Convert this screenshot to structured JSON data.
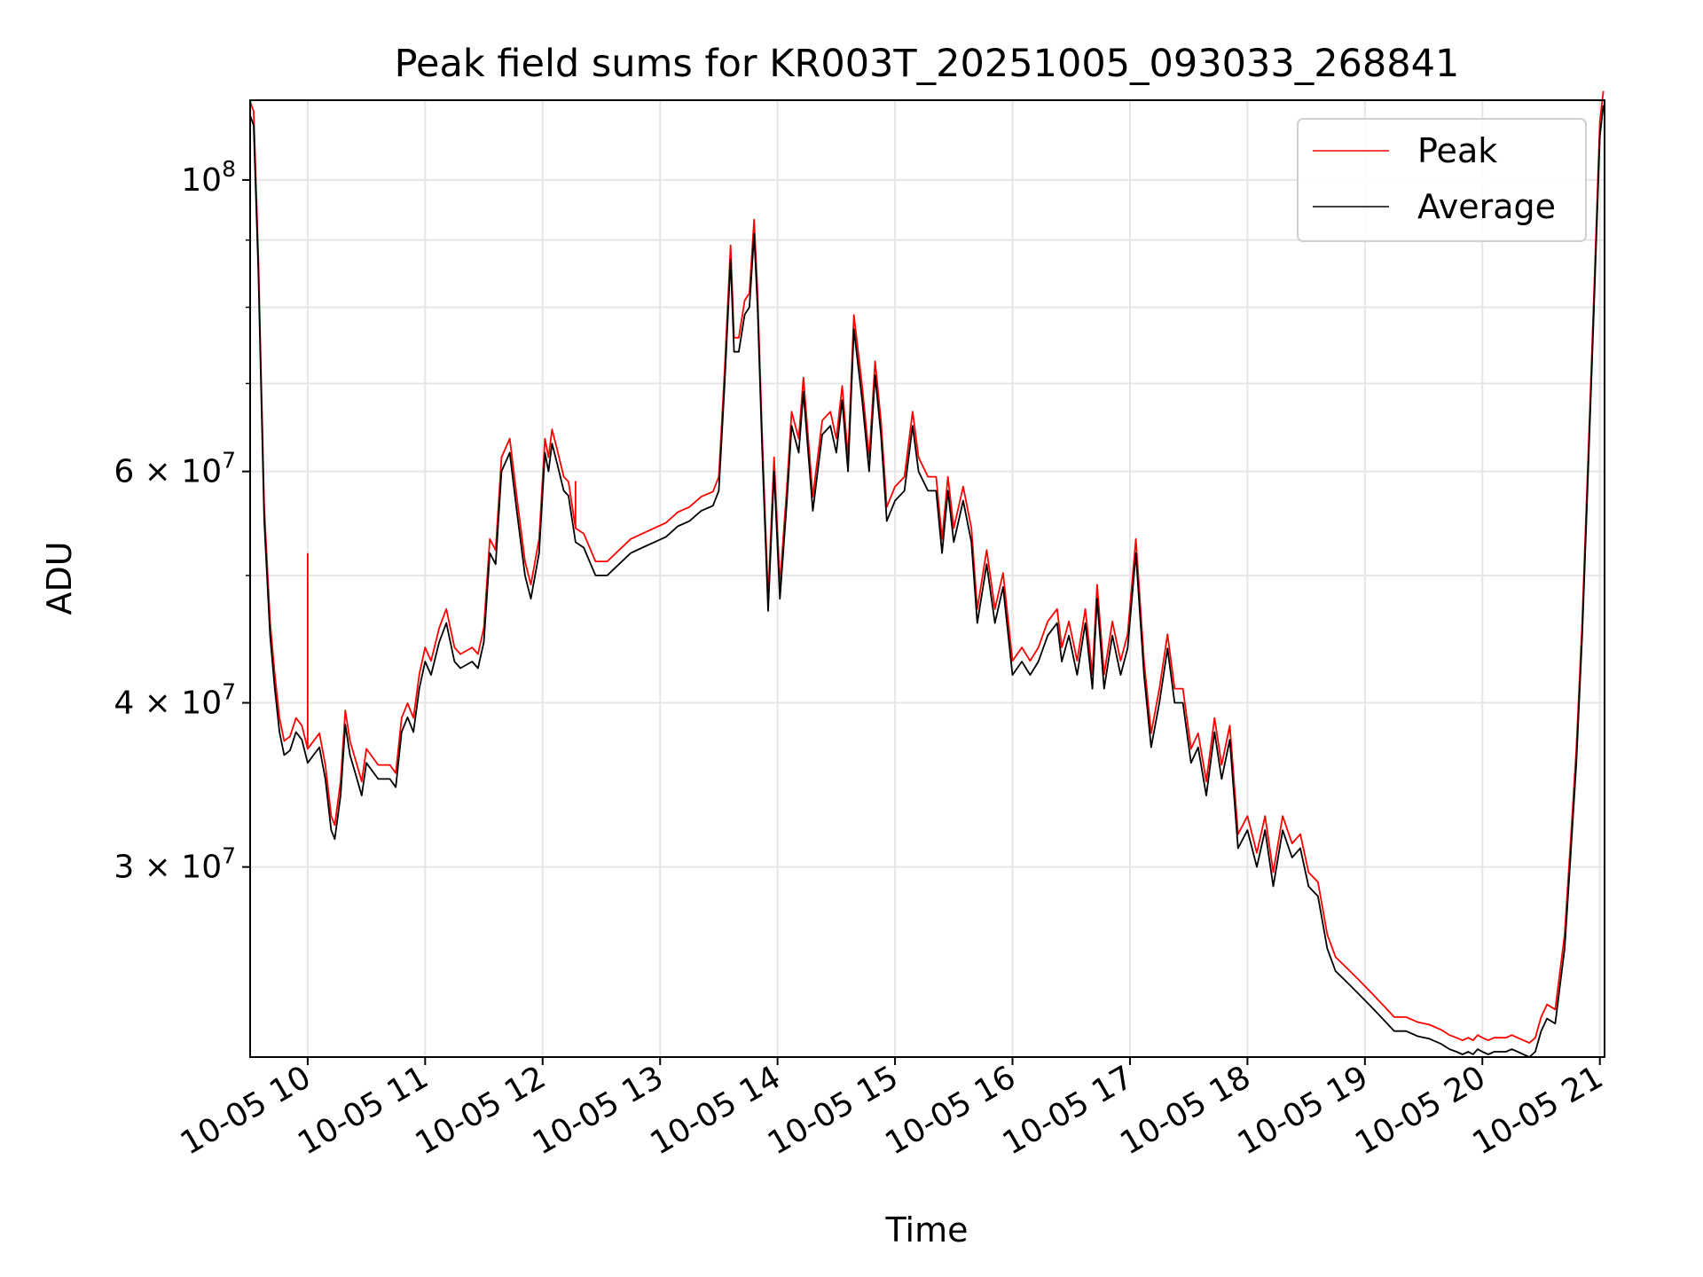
{
  "chart_data": {
    "type": "line",
    "title": "Peak field sums for KR003T_20251005_093033_268841",
    "xlabel": "Time",
    "ylabel": "ADU",
    "yscale": "log",
    "xlim": [
      9.51,
      21.04
    ],
    "ylim": [
      21500000,
      115000000
    ],
    "grid": true,
    "legend_position": "top-right",
    "x_ticks": [
      {
        "value": 10,
        "label": "10-05 10"
      },
      {
        "value": 11,
        "label": "10-05 11"
      },
      {
        "value": 12,
        "label": "10-05 12"
      },
      {
        "value": 13,
        "label": "10-05 13"
      },
      {
        "value": 14,
        "label": "10-05 14"
      },
      {
        "value": 15,
        "label": "10-05 15"
      },
      {
        "value": 16,
        "label": "10-05 16"
      },
      {
        "value": 17,
        "label": "10-05 17"
      },
      {
        "value": 18,
        "label": "10-05 18"
      },
      {
        "value": 19,
        "label": "10-05 19"
      },
      {
        "value": 20,
        "label": "10-05 20"
      },
      {
        "value": 21,
        "label": "10-05 21"
      }
    ],
    "y_ticks": [
      {
        "value": 30000000,
        "label": "3 × 10",
        "exp": "7"
      },
      {
        "value": 40000000,
        "label": "4 × 10",
        "exp": "7"
      },
      {
        "value": 60000000,
        "label": "6 × 10",
        "exp": "7"
      },
      {
        "value": 100000000,
        "label": "10",
        "exp": "8"
      }
    ],
    "y_minor_grid": [
      50000000,
      70000000,
      80000000,
      90000000
    ],
    "average_points": [
      [
        9.51,
        112000000
      ],
      [
        9.54,
        110000000
      ],
      [
        9.58,
        85000000
      ],
      [
        9.63,
        55000000
      ],
      [
        9.68,
        45000000
      ],
      [
        9.72,
        41000000
      ],
      [
        9.76,
        38000000
      ],
      [
        9.8,
        36500000
      ],
      [
        9.85,
        36800000
      ],
      [
        9.9,
        38000000
      ],
      [
        9.95,
        37500000
      ],
      [
        10.0,
        36000000
      ],
      [
        10.05,
        36500000
      ],
      [
        10.1,
        37000000
      ],
      [
        10.15,
        35000000
      ],
      [
        10.2,
        32000000
      ],
      [
        10.23,
        31500000
      ],
      [
        10.28,
        34000000
      ],
      [
        10.32,
        38500000
      ],
      [
        10.36,
        36500000
      ],
      [
        10.42,
        35000000
      ],
      [
        10.46,
        34000000
      ],
      [
        10.5,
        36000000
      ],
      [
        10.55,
        35500000
      ],
      [
        10.6,
        35000000
      ],
      [
        10.7,
        35000000
      ],
      [
        10.75,
        34500000
      ],
      [
        10.8,
        38000000
      ],
      [
        10.85,
        39000000
      ],
      [
        10.9,
        38000000
      ],
      [
        10.95,
        41000000
      ],
      [
        11.0,
        43000000
      ],
      [
        11.05,
        42000000
      ],
      [
        11.12,
        44500000
      ],
      [
        11.18,
        46000000
      ],
      [
        11.25,
        43000000
      ],
      [
        11.3,
        42500000
      ],
      [
        11.4,
        43000000
      ],
      [
        11.45,
        42500000
      ],
      [
        11.5,
        44500000
      ],
      [
        11.55,
        52000000
      ],
      [
        11.6,
        51000000
      ],
      [
        11.65,
        60000000
      ],
      [
        11.72,
        62000000
      ],
      [
        11.78,
        56000000
      ],
      [
        11.85,
        50000000
      ],
      [
        11.9,
        48000000
      ],
      [
        11.97,
        52000000
      ],
      [
        12.02,
        62000000
      ],
      [
        12.05,
        60000000
      ],
      [
        12.08,
        63000000
      ],
      [
        12.12,
        61000000
      ],
      [
        12.18,
        58000000
      ],
      [
        12.22,
        57500000
      ],
      [
        12.28,
        53000000
      ],
      [
        12.35,
        52500000
      ],
      [
        12.45,
        50000000
      ],
      [
        12.55,
        50000000
      ],
      [
        12.65,
        51000000
      ],
      [
        12.75,
        52000000
      ],
      [
        12.85,
        52500000
      ],
      [
        12.95,
        53000000
      ],
      [
        13.05,
        53500000
      ],
      [
        13.15,
        54500000
      ],
      [
        13.25,
        55000000
      ],
      [
        13.35,
        56000000
      ],
      [
        13.45,
        56500000
      ],
      [
        13.5,
        58000000
      ],
      [
        13.55,
        70000000
      ],
      [
        13.6,
        87000000
      ],
      [
        13.63,
        74000000
      ],
      [
        13.67,
        74000000
      ],
      [
        13.72,
        79000000
      ],
      [
        13.76,
        80000000
      ],
      [
        13.8,
        91000000
      ],
      [
        13.83,
        80000000
      ],
      [
        13.87,
        62000000
      ],
      [
        13.92,
        47000000
      ],
      [
        13.97,
        60000000
      ],
      [
        14.02,
        48000000
      ],
      [
        14.08,
        57000000
      ],
      [
        14.12,
        65000000
      ],
      [
        14.18,
        62000000
      ],
      [
        14.22,
        69000000
      ],
      [
        14.3,
        56000000
      ],
      [
        14.38,
        64000000
      ],
      [
        14.45,
        65000000
      ],
      [
        14.5,
        62000000
      ],
      [
        14.55,
        68000000
      ],
      [
        14.6,
        60000000
      ],
      [
        14.65,
        77000000
      ],
      [
        14.72,
        68000000
      ],
      [
        14.78,
        60000000
      ],
      [
        14.83,
        71000000
      ],
      [
        14.88,
        64000000
      ],
      [
        14.93,
        55000000
      ],
      [
        15.0,
        57000000
      ],
      [
        15.08,
        58000000
      ],
      [
        15.15,
        65000000
      ],
      [
        15.2,
        60000000
      ],
      [
        15.28,
        58000000
      ],
      [
        15.35,
        58000000
      ],
      [
        15.4,
        52000000
      ],
      [
        15.45,
        58000000
      ],
      [
        15.5,
        53000000
      ],
      [
        15.58,
        57000000
      ],
      [
        15.65,
        53000000
      ],
      [
        15.7,
        46000000
      ],
      [
        15.78,
        51000000
      ],
      [
        15.85,
        46000000
      ],
      [
        15.92,
        49000000
      ],
      [
        16.0,
        42000000
      ],
      [
        16.08,
        43000000
      ],
      [
        16.15,
        42000000
      ],
      [
        16.22,
        43000000
      ],
      [
        16.3,
        45000000
      ],
      [
        16.38,
        46000000
      ],
      [
        16.42,
        43000000
      ],
      [
        16.48,
        45000000
      ],
      [
        16.55,
        42000000
      ],
      [
        16.62,
        46000000
      ],
      [
        16.68,
        41000000
      ],
      [
        16.72,
        48000000
      ],
      [
        16.78,
        41000000
      ],
      [
        16.85,
        45000000
      ],
      [
        16.92,
        42000000
      ],
      [
        16.98,
        44000000
      ],
      [
        17.05,
        52000000
      ],
      [
        17.12,
        42000000
      ],
      [
        17.18,
        37000000
      ],
      [
        17.25,
        40000000
      ],
      [
        17.32,
        44000000
      ],
      [
        17.38,
        40000000
      ],
      [
        17.45,
        40000000
      ],
      [
        17.52,
        36000000
      ],
      [
        17.58,
        37000000
      ],
      [
        17.65,
        34000000
      ],
      [
        17.72,
        38000000
      ],
      [
        17.78,
        35000000
      ],
      [
        17.85,
        37500000
      ],
      [
        17.92,
        31000000
      ],
      [
        18.0,
        32000000
      ],
      [
        18.08,
        30000000
      ],
      [
        18.15,
        32000000
      ],
      [
        18.22,
        29000000
      ],
      [
        18.3,
        32000000
      ],
      [
        18.38,
        30500000
      ],
      [
        18.45,
        31000000
      ],
      [
        18.52,
        29000000
      ],
      [
        18.6,
        28500000
      ],
      [
        18.68,
        26000000
      ],
      [
        18.75,
        25000000
      ],
      [
        18.85,
        24500000
      ],
      [
        18.95,
        24000000
      ],
      [
        19.05,
        23500000
      ],
      [
        19.15,
        23000000
      ],
      [
        19.25,
        22500000
      ],
      [
        19.35,
        22500000
      ],
      [
        19.45,
        22300000
      ],
      [
        19.55,
        22200000
      ],
      [
        19.65,
        22000000
      ],
      [
        19.72,
        21800000
      ],
      [
        19.78,
        21700000
      ],
      [
        19.83,
        21600000
      ],
      [
        19.88,
        21700000
      ],
      [
        19.92,
        21600000
      ],
      [
        19.96,
        21800000
      ],
      [
        20.0,
        21700000
      ],
      [
        20.05,
        21600000
      ],
      [
        20.1,
        21700000
      ],
      [
        20.15,
        21700000
      ],
      [
        20.2,
        21700000
      ],
      [
        20.25,
        21800000
      ],
      [
        20.3,
        21700000
      ],
      [
        20.35,
        21600000
      ],
      [
        20.4,
        21500000
      ],
      [
        20.45,
        21700000
      ],
      [
        20.5,
        22500000
      ],
      [
        20.55,
        23000000
      ],
      [
        20.62,
        22800000
      ],
      [
        20.7,
        26000000
      ],
      [
        20.75,
        30500000
      ],
      [
        20.8,
        36000000
      ],
      [
        20.85,
        45000000
      ],
      [
        20.9,
        60000000
      ],
      [
        20.95,
        80000000
      ],
      [
        21.0,
        108000000
      ],
      [
        21.03,
        114000000
      ]
    ],
    "series": [
      {
        "name": "Peak",
        "color": "#ff0000",
        "offset_factor": 1.025,
        "spikes": [
          [
            10.0,
            52000000
          ],
          [
            12.28,
            59000000
          ]
        ]
      },
      {
        "name": "Average",
        "color": "#000000",
        "offset_factor": 1.0,
        "spikes": []
      }
    ]
  }
}
